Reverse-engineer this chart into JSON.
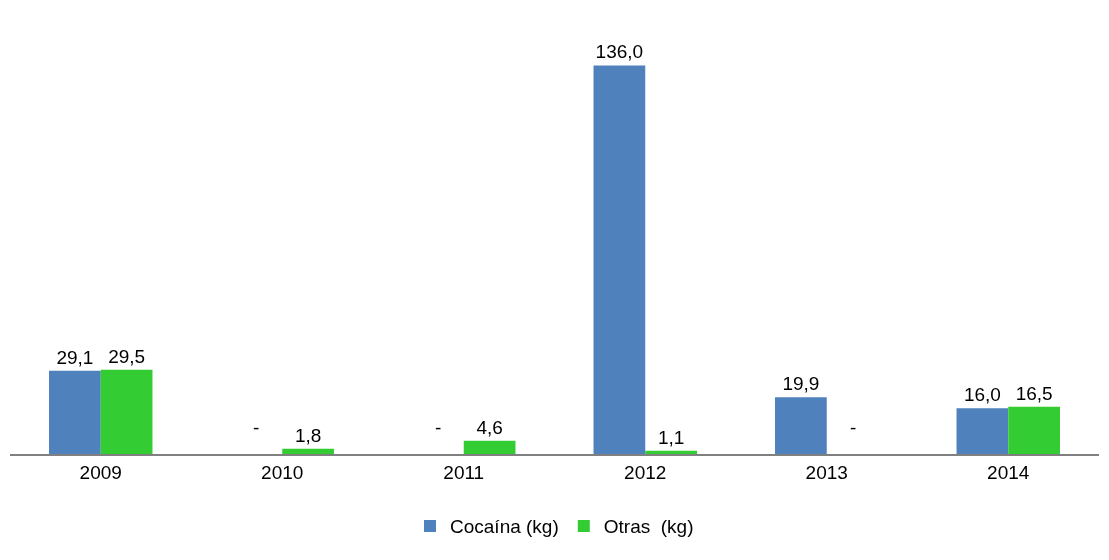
{
  "chart_data": {
    "type": "bar",
    "categories": [
      "2009",
      "2010",
      "2011",
      "2012",
      "2013",
      "2014"
    ],
    "series": [
      {
        "name": "Cocaína (kg)",
        "color": "#4f81bd",
        "values": [
          29.1,
          null,
          null,
          136.0,
          19.9,
          16.0
        ],
        "value_labels": [
          "29,1",
          null,
          null,
          "136,0",
          "19,9",
          "16,0"
        ]
      },
      {
        "name": "Otras  (kg)",
        "color": "#33cc33",
        "values": [
          29.5,
          1.8,
          4.6,
          1.1,
          null,
          16.5
        ],
        "value_labels": [
          "29,5",
          "1,8",
          "4,6",
          "1,1",
          null,
          "16,5"
        ]
      }
    ],
    "annotations": [
      {
        "text": "-",
        "x": "2010",
        "y": 0
      },
      {
        "text": "-",
        "x": "2011",
        "y": 0
      },
      {
        "text": "-",
        "x": "2013",
        "y": 0
      }
    ],
    "legend": "bottom",
    "grid": false
  }
}
